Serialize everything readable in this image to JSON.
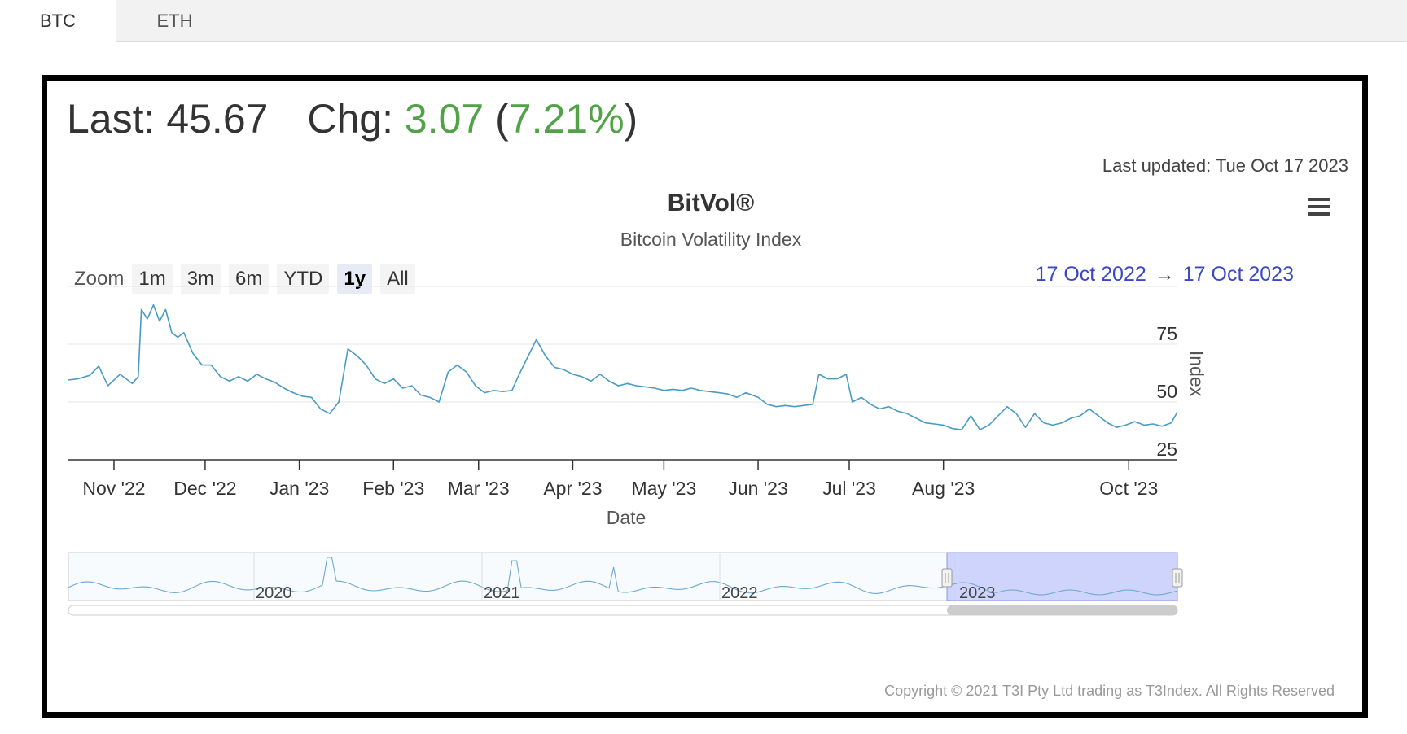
{
  "tabs": [
    {
      "label": "BTC",
      "active": true
    },
    {
      "label": "ETH",
      "active": false
    }
  ],
  "quote": {
    "last_label": "Last:",
    "last_value": "45.67",
    "chg_label": "Chg:",
    "chg_value": "3.07",
    "chg_pct": "7.21%"
  },
  "last_updated": "Last updated: Tue Oct 17 2023",
  "zoom": {
    "label": "Zoom",
    "buttons": [
      "1m",
      "3m",
      "6m",
      "YTD",
      "1y",
      "All"
    ],
    "selected": "1y"
  },
  "range": {
    "from": "17 Oct 2022",
    "arrow": "→",
    "to": "17 Oct 2023"
  },
  "copyright": "Copyright © 2021 T3I Pty Ltd trading as T3Index. All Rights Reserved",
  "colors": {
    "line": "#4a9bc4",
    "positive": "#52a347",
    "range_text": "#3b48c4",
    "navigator_mask": "#c9cffb"
  },
  "icons": {
    "menu": "hamburger-menu-icon"
  },
  "chart_data": {
    "type": "line",
    "title": "BitVol®",
    "subtitle": "Bitcoin Volatility Index",
    "xlabel": "Date",
    "ylabel": "Index",
    "ylim": [
      25,
      100
    ],
    "yticks": [
      25,
      50,
      75
    ],
    "xticks": [
      "Nov '22",
      "Dec '22",
      "Jan '23",
      "Feb '23",
      "Mar '23",
      "Apr '23",
      "May '23",
      "Jun '23",
      "Jul '23",
      "Aug '23",
      "Oct '23"
    ],
    "xticks_dates": [
      "2022-11-01",
      "2022-12-01",
      "2023-01-01",
      "2023-02-01",
      "2023-03-01",
      "2023-04-01",
      "2023-05-01",
      "2023-06-01",
      "2023-07-01",
      "2023-08-01",
      "2023-10-01"
    ],
    "xrange": [
      "2022-10-17",
      "2023-10-17"
    ],
    "grid": true,
    "series": [
      {
        "values": [
          [
            "2022-10-17",
            59.5
          ],
          [
            "2022-10-20",
            60
          ],
          [
            "2022-10-24",
            61.5
          ],
          [
            "2022-10-27",
            65.5
          ],
          [
            "2022-10-30",
            57
          ],
          [
            "2022-11-03",
            62
          ],
          [
            "2022-11-07",
            58
          ],
          [
            "2022-11-09",
            61
          ],
          [
            "2022-11-10",
            90
          ],
          [
            "2022-11-12",
            86
          ],
          [
            "2022-11-14",
            92
          ],
          [
            "2022-11-16",
            85
          ],
          [
            "2022-11-18",
            90
          ],
          [
            "2022-11-20",
            80
          ],
          [
            "2022-11-22",
            78
          ],
          [
            "2022-11-24",
            80
          ],
          [
            "2022-11-27",
            71
          ],
          [
            "2022-11-30",
            66
          ],
          [
            "2022-12-03",
            66
          ],
          [
            "2022-12-06",
            61
          ],
          [
            "2022-12-09",
            59
          ],
          [
            "2022-12-12",
            61
          ],
          [
            "2022-12-15",
            59
          ],
          [
            "2022-12-18",
            62
          ],
          [
            "2022-12-21",
            60
          ],
          [
            "2022-12-24",
            58.5
          ],
          [
            "2022-12-27",
            56
          ],
          [
            "2022-12-30",
            54
          ],
          [
            "2023-01-02",
            52.5
          ],
          [
            "2023-01-05",
            52
          ],
          [
            "2023-01-08",
            47
          ],
          [
            "2023-01-11",
            45
          ],
          [
            "2023-01-14",
            50
          ],
          [
            "2023-01-17",
            73
          ],
          [
            "2023-01-20",
            70
          ],
          [
            "2023-01-23",
            66
          ],
          [
            "2023-01-26",
            60
          ],
          [
            "2023-01-29",
            58
          ],
          [
            "2023-02-01",
            60
          ],
          [
            "2023-02-04",
            56
          ],
          [
            "2023-02-07",
            57
          ],
          [
            "2023-02-10",
            53
          ],
          [
            "2023-02-13",
            52
          ],
          [
            "2023-02-16",
            50
          ],
          [
            "2023-02-19",
            63
          ],
          [
            "2023-02-22",
            66
          ],
          [
            "2023-02-25",
            63
          ],
          [
            "2023-02-28",
            57
          ],
          [
            "2023-03-03",
            54
          ],
          [
            "2023-03-06",
            55
          ],
          [
            "2023-03-09",
            54.5
          ],
          [
            "2023-03-12",
            55
          ],
          [
            "2023-03-14",
            61
          ],
          [
            "2023-03-17",
            69
          ],
          [
            "2023-03-20",
            77
          ],
          [
            "2023-03-23",
            70
          ],
          [
            "2023-03-26",
            65
          ],
          [
            "2023-03-29",
            64
          ],
          [
            "2023-04-01",
            62
          ],
          [
            "2023-04-04",
            61
          ],
          [
            "2023-04-07",
            59
          ],
          [
            "2023-04-10",
            62
          ],
          [
            "2023-04-13",
            59
          ],
          [
            "2023-04-16",
            57
          ],
          [
            "2023-04-19",
            58
          ],
          [
            "2023-04-22",
            57
          ],
          [
            "2023-04-25",
            56.5
          ],
          [
            "2023-04-28",
            56
          ],
          [
            "2023-05-01",
            55
          ],
          [
            "2023-05-04",
            55.5
          ],
          [
            "2023-05-07",
            55
          ],
          [
            "2023-05-10",
            56
          ],
          [
            "2023-05-13",
            55
          ],
          [
            "2023-05-16",
            54.5
          ],
          [
            "2023-05-19",
            54
          ],
          [
            "2023-05-22",
            53.5
          ],
          [
            "2023-05-25",
            52
          ],
          [
            "2023-05-28",
            54
          ],
          [
            "2023-06-01",
            52
          ],
          [
            "2023-06-04",
            49
          ],
          [
            "2023-06-07",
            48
          ],
          [
            "2023-06-10",
            48.5
          ],
          [
            "2023-06-13",
            48
          ],
          [
            "2023-06-16",
            48.5
          ],
          [
            "2023-06-19",
            49
          ],
          [
            "2023-06-21",
            62
          ],
          [
            "2023-06-24",
            60
          ],
          [
            "2023-06-27",
            60
          ],
          [
            "2023-06-30",
            62
          ],
          [
            "2023-07-02",
            50
          ],
          [
            "2023-07-05",
            52
          ],
          [
            "2023-07-08",
            49
          ],
          [
            "2023-07-11",
            47
          ],
          [
            "2023-07-14",
            48
          ],
          [
            "2023-07-17",
            46
          ],
          [
            "2023-07-20",
            45
          ],
          [
            "2023-07-23",
            43
          ],
          [
            "2023-07-26",
            41
          ],
          [
            "2023-07-29",
            40.5
          ],
          [
            "2023-08-01",
            40
          ],
          [
            "2023-08-04",
            38.5
          ],
          [
            "2023-08-07",
            38
          ],
          [
            "2023-08-10",
            44
          ],
          [
            "2023-08-13",
            38
          ],
          [
            "2023-08-16",
            40
          ],
          [
            "2023-08-19",
            44
          ],
          [
            "2023-08-22",
            48
          ],
          [
            "2023-08-25",
            45
          ],
          [
            "2023-08-28",
            39
          ],
          [
            "2023-08-31",
            45
          ],
          [
            "2023-09-03",
            41
          ],
          [
            "2023-09-06",
            40
          ],
          [
            "2023-09-09",
            41
          ],
          [
            "2023-09-12",
            43
          ],
          [
            "2023-09-15",
            44
          ],
          [
            "2023-09-18",
            47
          ],
          [
            "2023-09-21",
            44
          ],
          [
            "2023-09-24",
            41
          ],
          [
            "2023-09-27",
            39
          ],
          [
            "2023-09-30",
            40
          ],
          [
            "2023-10-03",
            41.5
          ],
          [
            "2023-10-06",
            40
          ],
          [
            "2023-10-09",
            40.5
          ],
          [
            "2023-10-12",
            39.5
          ],
          [
            "2023-10-15",
            41
          ],
          [
            "2023-10-17",
            45.67
          ]
        ]
      }
    ],
    "navigator": {
      "labels": [
        "2020",
        "2021",
        "2022",
        "2023"
      ],
      "selected_from": "17 Oct 2022",
      "selected_to": "17 Oct 2023"
    }
  }
}
